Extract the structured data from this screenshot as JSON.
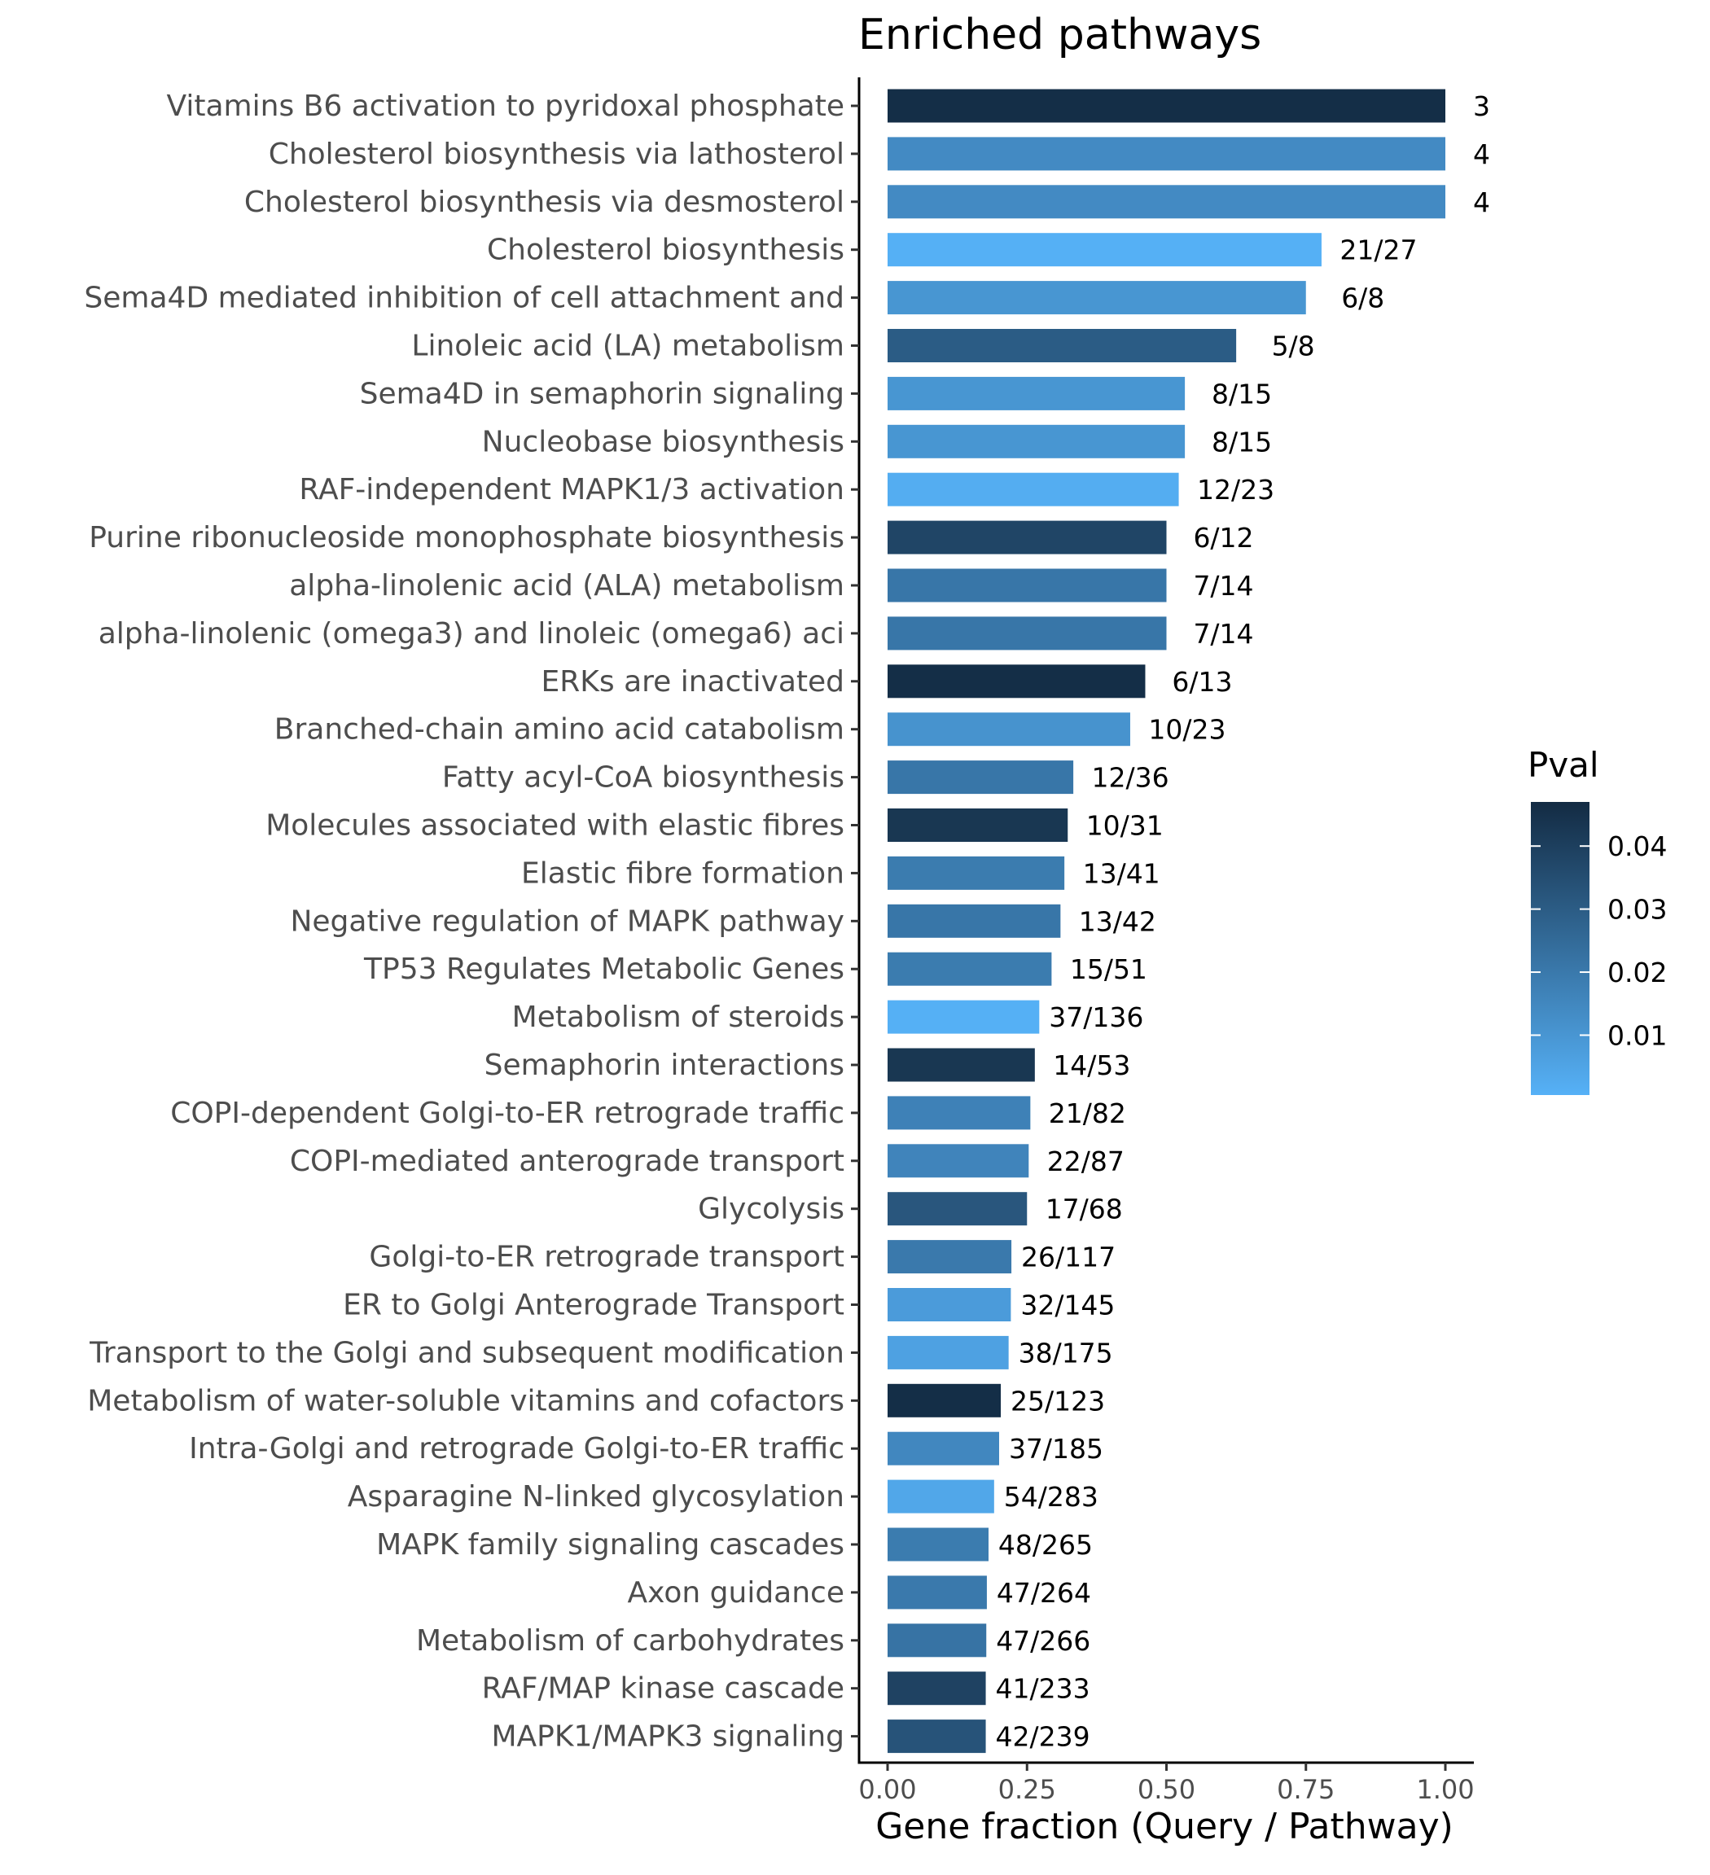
{
  "chart_data": {
    "type": "bar",
    "orientation": "horizontal",
    "title": "Enriched pathways",
    "xlabel": "Gene fraction (Query / Pathway)",
    "ylabel": "",
    "xlim": [
      0,
      1.0
    ],
    "xticks": [
      "0.00",
      "0.25",
      "0.50",
      "0.75",
      "1.00"
    ],
    "grid": false,
    "categories": [
      "Vitamins B6 activation to pyridoxal phosphate",
      "Cholesterol biosynthesis via lathosterol",
      "Cholesterol biosynthesis via desmosterol",
      "Cholesterol biosynthesis",
      "Sema4D mediated inhibition of cell attachment and ",
      "Linoleic acid (LA) metabolism",
      "Sema4D in semaphorin signaling",
      "Nucleobase biosynthesis",
      "RAF-independent MAPK1/3 activation",
      "Purine ribonucleoside monophosphate biosynthesis",
      "alpha-linolenic acid (ALA) metabolism",
      "alpha-linolenic (omega3) and linoleic (omega6) aci",
      "ERKs are inactivated",
      "Branched-chain amino acid catabolism",
      "Fatty acyl-CoA biosynthesis",
      "Molecules associated with elastic fibres",
      "Elastic fibre formation",
      "Negative regulation of MAPK pathway",
      "TP53 Regulates Metabolic Genes",
      "Metabolism of steroids",
      "Semaphorin interactions",
      "COPI-dependent Golgi-to-ER retrograde traffic",
      "COPI-mediated anterograde transport",
      "Glycolysis",
      "Golgi-to-ER retrograde transport",
      "ER to Golgi Anterograde Transport",
      "Transport to the Golgi and subsequent modification",
      "Metabolism of water-soluble vitamins and cofactors",
      "Intra-Golgi and retrograde Golgi-to-ER traffic",
      "Asparagine N-linked glycosylation",
      "MAPK family signaling cascades",
      "Axon guidance",
      "Metabolism of carbohydrates",
      "RAF/MAP kinase cascade",
      "MAPK1/MAPK3 signaling"
    ],
    "values": [
      1.0,
      1.0,
      1.0,
      0.778,
      0.75,
      0.625,
      0.533,
      0.533,
      0.522,
      0.5,
      0.5,
      0.5,
      0.462,
      0.435,
      0.333,
      0.323,
      0.317,
      0.31,
      0.294,
      0.272,
      0.264,
      0.256,
      0.253,
      0.25,
      0.222,
      0.221,
      0.217,
      0.203,
      0.2,
      0.191,
      0.181,
      0.178,
      0.177,
      0.176,
      0.176
    ],
    "labels": [
      "3",
      "4",
      "4",
      "21/27",
      "6/8",
      "5/8",
      "8/15",
      "8/15",
      "12/23",
      "6/12",
      "7/14",
      "7/14",
      "6/13",
      "10/23",
      "12/36",
      "10/31",
      "13/41",
      "13/42",
      "15/51",
      "37/136",
      "14/53",
      "21/82",
      "22/87",
      "17/68",
      "26/117",
      "32/145",
      "38/175",
      "25/123",
      "37/185",
      "54/283",
      "48/265",
      "47/264",
      "47/266",
      "41/233",
      "42/239"
    ],
    "pval": [
      0.046,
      0.014,
      0.014,
      0.001,
      0.01,
      0.03,
      0.01,
      0.01,
      0.002,
      0.038,
      0.021,
      0.021,
      0.046,
      0.011,
      0.021,
      0.043,
      0.019,
      0.021,
      0.019,
      0.001,
      0.043,
      0.017,
      0.016,
      0.032,
      0.02,
      0.008,
      0.006,
      0.046,
      0.015,
      0.004,
      0.019,
      0.02,
      0.022,
      0.039,
      0.033
    ],
    "legend": {
      "title": "Pval",
      "placement": "right",
      "ticks": [
        "0.04",
        "0.03",
        "0.02",
        "0.01"
      ],
      "tick_values": [
        0.04,
        0.03,
        0.02,
        0.01
      ],
      "range": [
        0.0005,
        0.047
      ],
      "color_low": "#56B1F7",
      "color_high": "#132B43"
    }
  }
}
